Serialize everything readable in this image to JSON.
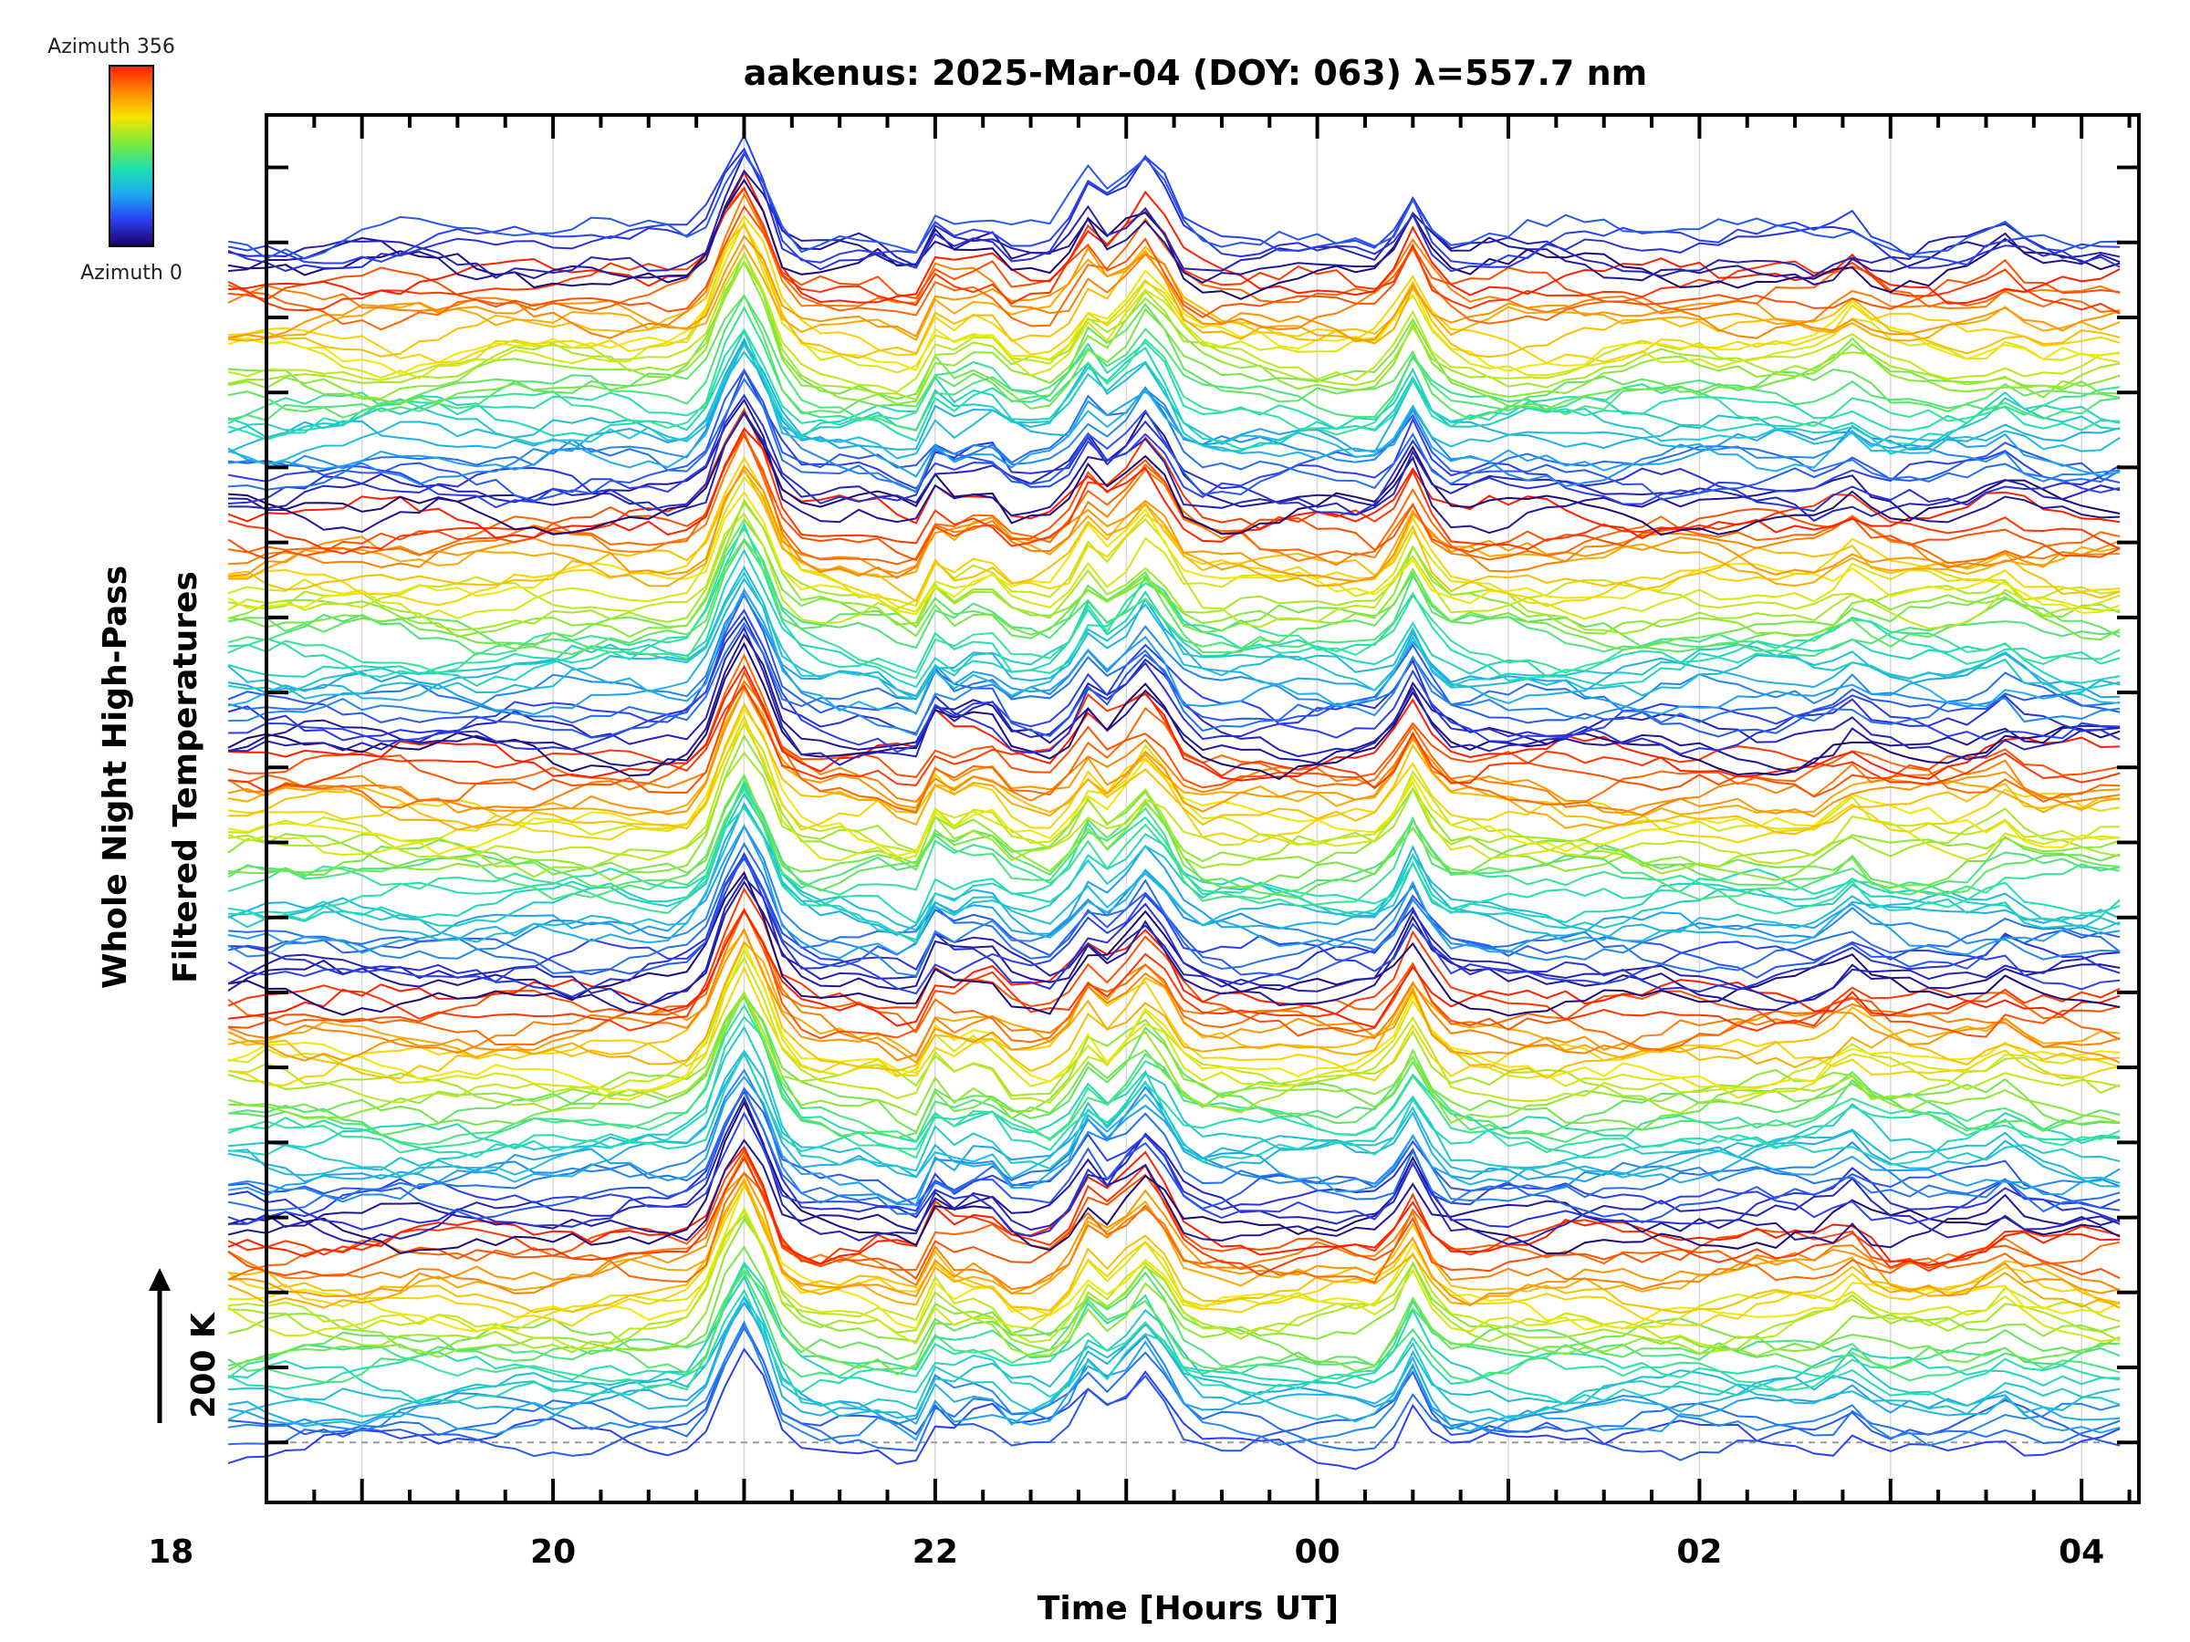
{
  "chart_data": {
    "type": "line",
    "title": "aakenus: 2025-Mar-04 (DOY: 063) λ=557.7 nm",
    "xlabel": "Time [Hours UT]",
    "ylabel_line1": "Whole Night High-Pass",
    "ylabel_line2": "Filtered Temperatures",
    "scale_label": "200 K",
    "scale_value_K": 200,
    "x_hours_range": [
      18.5,
      28.3
    ],
    "x_ticks": [
      {
        "hour": 18,
        "label": "18"
      },
      {
        "hour": 20,
        "label": "20"
      },
      {
        "hour": 22,
        "label": "22"
      },
      {
        "hour": 24,
        "label": "00"
      },
      {
        "hour": 26,
        "label": "02"
      },
      {
        "hour": 28,
        "label": "04"
      }
    ],
    "colorbar": {
      "top_label": "Azimuth 356",
      "bottom_label": "Azimuth 0",
      "min_azimuth": 0,
      "max_azimuth": 356,
      "colors": [
        "#ff1a00",
        "#ff8800",
        "#f5e600",
        "#7ee83a",
        "#1fe0b0",
        "#1ea8f0",
        "#2a3cf0",
        "#1a0060"
      ]
    },
    "data_start_hour": 18.3,
    "data_end_hour": 28.2,
    "n_traces": 162,
    "trace_offset_K": 10,
    "y_range_K": [
      -80,
      1770
    ],
    "common_wave_events": [
      {
        "hour": 21.0,
        "amplitude_K": 140
      },
      {
        "hour": 21.9,
        "amplitude_K": -30
      },
      {
        "hour": 22.0,
        "amplitude_K": 45
      },
      {
        "hour": 22.25,
        "amplitude_K": 35
      },
      {
        "hour": 22.8,
        "amplitude_K": 60
      },
      {
        "hour": 23.1,
        "amplitude_K": 90
      },
      {
        "hour": 24.5,
        "amplitude_K": 70
      },
      {
        "hour": 26.8,
        "amplitude_K": 25
      },
      {
        "hour": 27.6,
        "amplitude_K": 20
      }
    ]
  }
}
